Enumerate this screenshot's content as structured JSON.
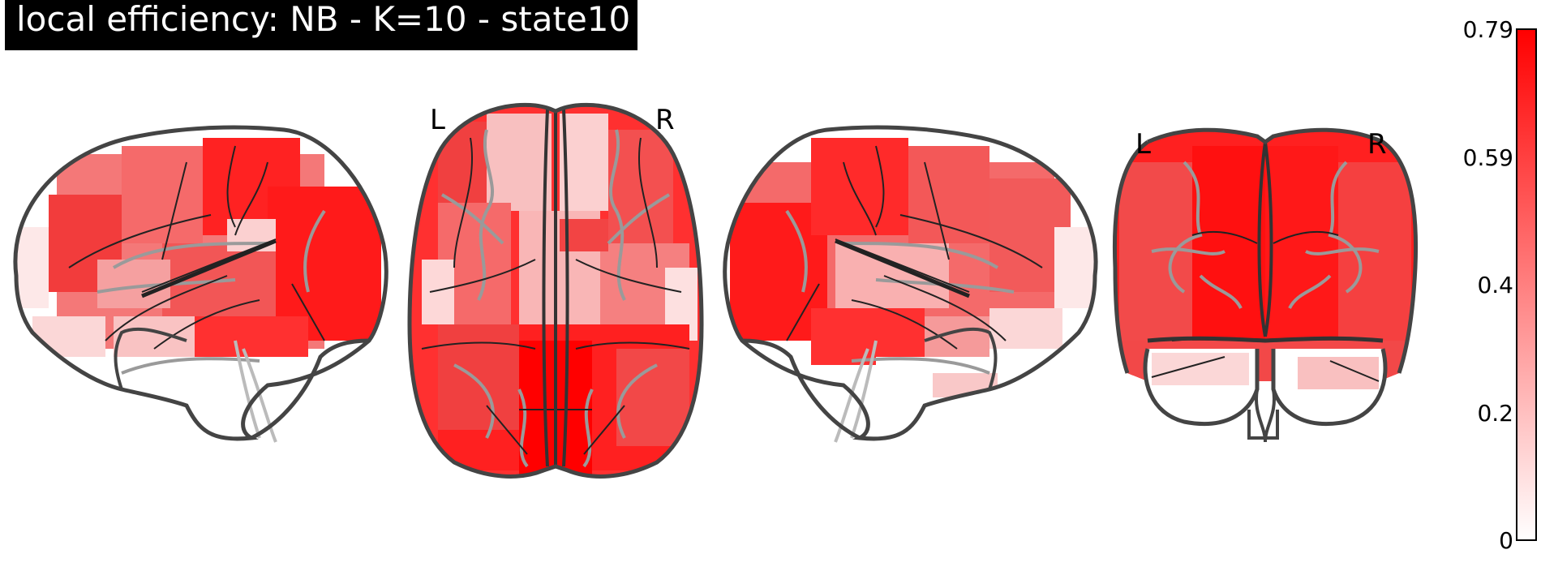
{
  "title": "local efficiency: NB - K=10 - state10",
  "views": {
    "axial": {
      "left_label": "L",
      "right_label": "R"
    },
    "coronal": {
      "left_label": "L",
      "right_label": "R"
    }
  },
  "colorbar": {
    "ticks": [
      "0.79",
      "0.59",
      "0.4",
      "0.2",
      "0"
    ],
    "colormap": "white-to-red",
    "low_color": "#ffffff",
    "high_color": "#ff0000"
  },
  "colors": {
    "outline": "#444444",
    "sulci": "#222222",
    "contours": "#9a9a9a"
  }
}
